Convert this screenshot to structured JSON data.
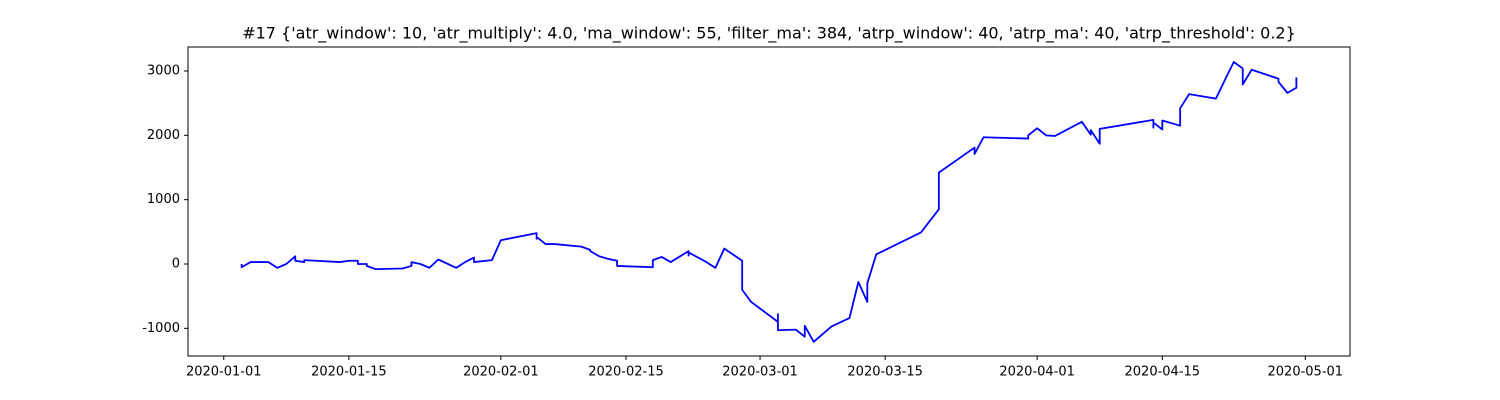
{
  "chart_data": {
    "type": "line",
    "title": "#17 {'atr_window': 10, 'atr_multiply': 4.0, 'ma_window': 55, 'filter_ma': 384, 'atrp_window': 40, 'atrp_ma': 40, 'atrp_threshold': 0.2}",
    "color": "#0000ff",
    "x": [
      "2020-01-03",
      "2020-01-03",
      "2020-01-04",
      "2020-01-06",
      "2020-01-07",
      "2020-01-08",
      "2020-01-09",
      "2020-01-09",
      "2020-01-10",
      "2020-01-10",
      "2020-01-14",
      "2020-01-15",
      "2020-01-16",
      "2020-01-16",
      "2020-01-17",
      "2020-01-17",
      "2020-01-18",
      "2020-01-21",
      "2020-01-22",
      "2020-01-22",
      "2020-01-23",
      "2020-01-24",
      "2020-01-25",
      "2020-01-27",
      "2020-01-28",
      "2020-01-29",
      "2020-01-29",
      "2020-01-31",
      "2020-02-01",
      "2020-02-05",
      "2020-02-05",
      "2020-02-05",
      "2020-02-06",
      "2020-02-07",
      "2020-02-10",
      "2020-02-11",
      "2020-02-11",
      "2020-02-12",
      "2020-02-13",
      "2020-02-14",
      "2020-02-14",
      "2020-02-18",
      "2020-02-18",
      "2020-02-19",
      "2020-02-20",
      "2020-02-22",
      "2020-02-22",
      "2020-02-22",
      "2020-02-24",
      "2020-02-25",
      "2020-02-26",
      "2020-02-28",
      "2020-02-28",
      "2020-02-29",
      "2020-03-03",
      "2020-03-03",
      "2020-03-03",
      "2020-03-05",
      "2020-03-06",
      "2020-03-06",
      "2020-03-07",
      "2020-03-09",
      "2020-03-11",
      "2020-03-12",
      "2020-03-13",
      "2020-03-13",
      "2020-03-14",
      "2020-03-19",
      "2020-03-21",
      "2020-03-21",
      "2020-03-25",
      "2020-03-25",
      "2020-03-26",
      "2020-03-31",
      "2020-03-31",
      "2020-04-01",
      "2020-04-02",
      "2020-04-03",
      "2020-04-06",
      "2020-04-07",
      "2020-04-07",
      "2020-04-08",
      "2020-04-08",
      "2020-04-14",
      "2020-04-14",
      "2020-04-14",
      "2020-04-15",
      "2020-04-15",
      "2020-04-17",
      "2020-04-17",
      "2020-04-18",
      "2020-04-21",
      "2020-04-22",
      "2020-04-23",
      "2020-04-24",
      "2020-04-24",
      "2020-04-25",
      "2020-04-28",
      "2020-04-28",
      "2020-04-29",
      "2020-04-30",
      "2020-04-30"
    ],
    "values": [
      0,
      -50,
      30,
      30,
      -60,
      0,
      120,
      50,
      30,
      60,
      30,
      50,
      50,
      0,
      0,
      -30,
      -80,
      -70,
      -30,
      30,
      0,
      -60,
      70,
      -60,
      30,
      100,
      30,
      60,
      370,
      480,
      390,
      420,
      310,
      310,
      270,
      220,
      200,
      120,
      80,
      50,
      -30,
      -50,
      60,
      110,
      30,
      200,
      130,
      180,
      30,
      -60,
      240,
      50,
      -400,
      -590,
      -900,
      -780,
      -1030,
      -1020,
      -1130,
      -960,
      -1210,
      -970,
      -840,
      -280,
      -590,
      -300,
      150,
      490,
      850,
      1420,
      1810,
      1710,
      1970,
      1950,
      2000,
      2110,
      2000,
      1990,
      2210,
      2010,
      2080,
      1870,
      2100,
      2240,
      2120,
      2200,
      2090,
      2230,
      2150,
      2420,
      2640,
      2570,
      2860,
      3140,
      3040,
      2790,
      3020,
      2880,
      2830,
      2660,
      2740,
      2900
    ],
    "xlim": [
      "2019-12-28",
      "2020-05-06"
    ],
    "xticks": [
      "2020-01-01",
      "2020-01-15",
      "2020-02-01",
      "2020-02-15",
      "2020-03-01",
      "2020-03-15",
      "2020-04-01",
      "2020-04-15",
      "2020-05-01"
    ],
    "ylim": [
      -1430,
      3373
    ],
    "yticks": [
      -1000,
      0,
      1000,
      2000,
      3000
    ],
    "grid": false
  }
}
